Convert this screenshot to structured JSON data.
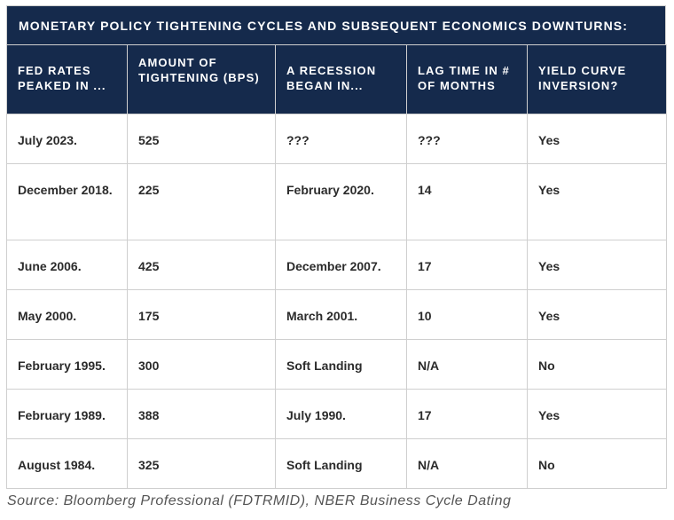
{
  "title": "MONETARY POLICY TIGHTENING CYCLES AND SUBSEQUENT ECONOMICS DOWNTURNS:",
  "columns": [
    "FED RATES PEAKED IN ...",
    "AMOUNT OF TIGHTENING (BPS)",
    "A RECESSION BEGAN IN...",
    "LAG TIME IN # OF MONTHS",
    "YIELD CURVE INVERSION?"
  ],
  "rows": [
    [
      "July 2023.",
      "525",
      "???",
      "???",
      "Yes"
    ],
    [
      "December 2018.",
      "225",
      "February 2020.",
      "14",
      "Yes"
    ],
    [
      "June 2006.",
      "425",
      "December 2007.",
      "17",
      "Yes"
    ],
    [
      "May 2000.",
      "175",
      "March 2001.",
      "10",
      "Yes"
    ],
    [
      "February 1995.",
      "300",
      "Soft Landing",
      "N/A",
      "No"
    ],
    [
      "February 1989.",
      "388",
      "July 1990.",
      "17",
      "Yes"
    ],
    [
      "August 1984.",
      "325",
      "Soft Landing",
      "N/A",
      "No"
    ]
  ],
  "source": "Source: Bloomberg Professional (FDTRMID), NBER Business Cycle Dating",
  "colors": {
    "header_bg": "#152a4c",
    "header_text": "#ffffff",
    "body_text": "#2b2b2b",
    "border": "#cfcfcf"
  }
}
